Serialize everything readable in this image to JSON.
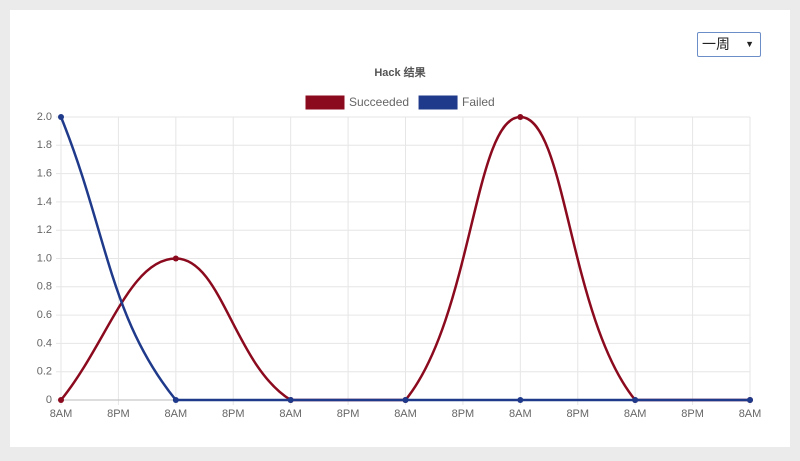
{
  "range_select": "一周",
  "chart_data": {
    "type": "line",
    "title": "Hack 结果",
    "x": [
      0,
      24,
      48,
      72,
      96,
      120,
      144
    ],
    "xlim": [
      0,
      144
    ],
    "xticks": [
      {
        "value": 0,
        "label": "8AM"
      },
      {
        "value": 12,
        "label": "8PM"
      },
      {
        "value": 24,
        "label": "8AM"
      },
      {
        "value": 36,
        "label": "8PM"
      },
      {
        "value": 48,
        "label": "8AM"
      },
      {
        "value": 60,
        "label": "8PM"
      },
      {
        "value": 72,
        "label": "8AM"
      },
      {
        "value": 84,
        "label": "8PM"
      },
      {
        "value": 96,
        "label": "8AM"
      },
      {
        "value": 108,
        "label": "8PM"
      },
      {
        "value": 120,
        "label": "8AM"
      },
      {
        "value": 132,
        "label": "8PM"
      },
      {
        "value": 144,
        "label": "8AM"
      }
    ],
    "ylim": [
      0,
      2
    ],
    "yticks": [
      0,
      0.2,
      0.4,
      0.6,
      0.8,
      {
        "value": 1,
        "label": "1.0"
      },
      1.2,
      1.4,
      1.6,
      1.8,
      {
        "value": 2,
        "label": "2.0"
      }
    ],
    "grid": true,
    "series": [
      {
        "name": "Succeeded",
        "color": "#8b0a1e",
        "values": [
          0,
          1,
          0,
          0,
          2,
          0,
          0
        ]
      },
      {
        "name": "Failed",
        "color": "#1f3a8a",
        "values": [
          2,
          0,
          0,
          0,
          0,
          0,
          0
        ]
      }
    ]
  }
}
